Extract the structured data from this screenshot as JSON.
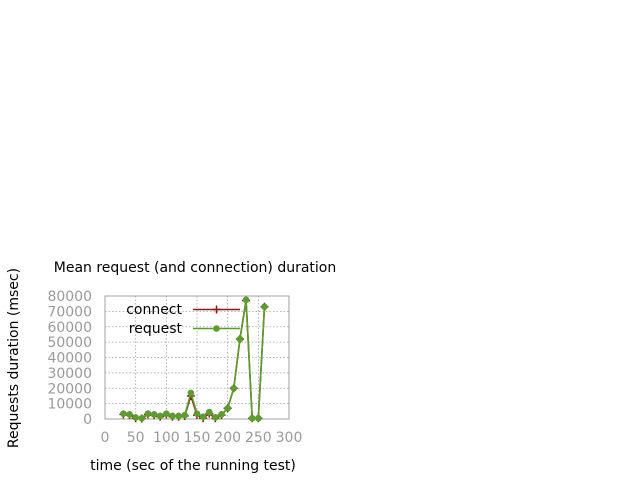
{
  "chart_data": {
    "type": "line",
    "title": "Mean request (and connection) duration",
    "xlabel": "time (sec of the running test)",
    "ylabel": "Requests duration (msec)",
    "xlim": [
      0,
      300
    ],
    "ylim": [
      0,
      80000
    ],
    "xticks": [
      0,
      50,
      100,
      150,
      200,
      250,
      300
    ],
    "yticks": [
      0,
      10000,
      20000,
      30000,
      40000,
      50000,
      60000,
      70000,
      80000
    ],
    "grid": true,
    "legend_position": "top-left",
    "series": [
      {
        "name": "connect",
        "color": "#8b1a1a",
        "marker": "plus",
        "x": [
          30,
          40,
          50,
          60,
          70,
          80,
          90,
          100,
          110,
          120,
          130,
          140,
          150,
          160,
          170,
          180,
          190,
          200,
          210,
          220,
          230,
          240,
          250,
          260
        ],
        "y": [
          3000,
          2500,
          500,
          300,
          3000,
          2500,
          1500,
          3000,
          1500,
          1500,
          2000,
          15000,
          2500,
          500,
          3500,
          500,
          2500,
          7000,
          20000,
          52000,
          77000,
          500,
          500,
          73000
        ]
      },
      {
        "name": "request",
        "color": "#5d9c2f",
        "marker": "circle",
        "x": [
          30,
          40,
          50,
          60,
          70,
          80,
          90,
          100,
          110,
          120,
          130,
          140,
          150,
          160,
          170,
          180,
          190,
          200,
          210,
          220,
          230,
          240,
          250,
          260
        ],
        "y": [
          3500,
          3000,
          1000,
          500,
          3500,
          3000,
          2000,
          3500,
          2000,
          2000,
          2500,
          17000,
          3500,
          1500,
          4500,
          1000,
          3000,
          7000,
          20000,
          52000,
          77500,
          500,
          500,
          73000
        ]
      }
    ]
  }
}
